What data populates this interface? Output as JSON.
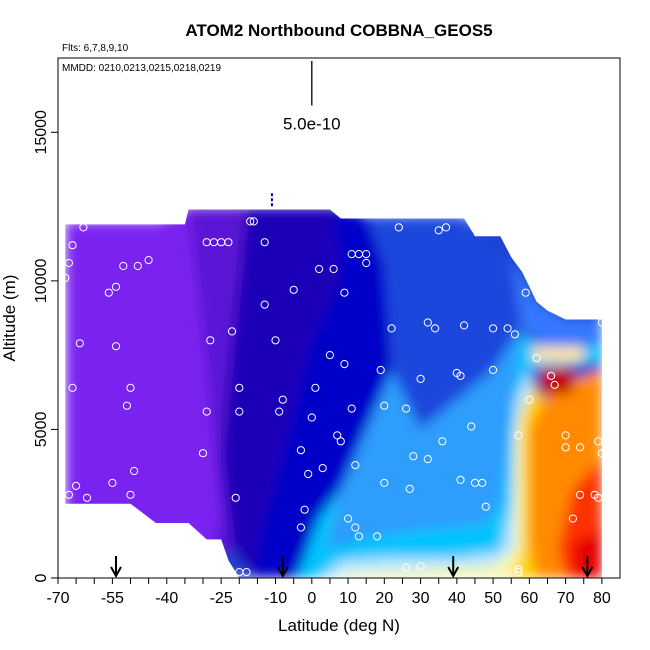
{
  "chart_data": {
    "type": "heatmap",
    "title": "ATOM2 Northbound COBBNA_GEOS5",
    "flights_text": "Flts: 6,7,8,9,10",
    "dates_text": "MMDD: 0210,0213,0215,0218,0219",
    "xlabel": "Latitude (deg N)",
    "ylabel": "Altitude (m)",
    "xlim": [
      -70,
      85
    ],
    "ylim": [
      0,
      17500
    ],
    "xticks": [
      -70,
      -55,
      -40,
      -25,
      -10,
      0,
      10,
      20,
      30,
      40,
      50,
      60,
      70,
      80
    ],
    "xtick_labels": [
      "-70",
      "-55",
      "-40",
      "-25",
      "-10",
      "0",
      "10",
      "20",
      "30",
      "40",
      "50",
      "60",
      "70",
      "80"
    ],
    "x_minor_ticks": [
      -65,
      -60,
      -50,
      -45,
      -35,
      -30,
      -20,
      -15,
      -5,
      5,
      15,
      25,
      35,
      45,
      55,
      65,
      75
    ],
    "yticks": [
      0,
      5000,
      10000,
      15000
    ],
    "ytick_labels": [
      "0",
      "5000",
      "10000",
      "15000"
    ],
    "scale_bar": {
      "label": "5.0e-10",
      "x": 0,
      "y_bottom": 15900,
      "y_top": 17400
    },
    "arrows_at_latitude": [
      -54,
      -8,
      39,
      76
    ],
    "domain_top": [
      [
        -68,
        0
      ],
      [
        -68,
        11900
      ],
      [
        -60,
        11900
      ],
      [
        -40,
        11900
      ],
      [
        -35,
        11900
      ],
      [
        -34,
        12400
      ],
      [
        -10,
        12400
      ],
      [
        5,
        12400
      ],
      [
        8,
        12100
      ],
      [
        42,
        12100
      ],
      [
        45,
        11500
      ],
      [
        52,
        11500
      ],
      [
        55,
        10800
      ],
      [
        58,
        10300
      ],
      [
        60,
        9800
      ],
      [
        62,
        9300
      ],
      [
        65,
        9000
      ],
      [
        70,
        8700
      ],
      [
        80,
        8700
      ],
      [
        80,
        0
      ]
    ],
    "domain_bottom": [
      [
        -68,
        2500
      ],
      [
        -50,
        2500
      ],
      [
        -43,
        1850
      ],
      [
        -34,
        1850
      ],
      [
        -29,
        1300
      ],
      [
        -25,
        1300
      ],
      [
        -23,
        600
      ],
      [
        -20,
        0
      ],
      [
        80,
        0
      ]
    ],
    "color_regions": [
      {
        "color": "#2040cc",
        "poly": [
          [
            -68,
            0
          ],
          [
            -68,
            12000
          ],
          [
            80,
            12000
          ],
          [
            80,
            0
          ]
        ]
      },
      {
        "color": "#7a22f0",
        "poly": [
          [
            -68,
            0
          ],
          [
            -68,
            12000
          ],
          [
            -42,
            12000
          ],
          [
            -34,
            12500
          ],
          [
            -30,
            12500
          ],
          [
            -28,
            6000
          ],
          [
            -25,
            2000
          ],
          [
            -30,
            0
          ]
        ]
      },
      {
        "color": "#5a14d4",
        "poly": [
          [
            -34,
            12500
          ],
          [
            -18,
            12500
          ],
          [
            -22,
            8000
          ],
          [
            -25,
            4000
          ],
          [
            -22,
            1000
          ],
          [
            -30,
            0
          ],
          [
            -25,
            2000
          ],
          [
            -28,
            6000
          ]
        ]
      },
      {
        "color": "#1f00b8",
        "poly": [
          [
            -18,
            12500
          ],
          [
            6,
            12500
          ],
          [
            8,
            10000
          ],
          [
            0,
            8000
          ],
          [
            -8,
            4000
          ],
          [
            -14,
            1500
          ],
          [
            -16,
            0
          ],
          [
            -22,
            1000
          ],
          [
            -25,
            4000
          ],
          [
            -22,
            8000
          ]
        ]
      },
      {
        "color": "#0000c8",
        "poly": [
          [
            6,
            12500
          ],
          [
            15,
            12200
          ],
          [
            20,
            10500
          ],
          [
            22,
            7000
          ],
          [
            15,
            5000
          ],
          [
            8,
            3000
          ],
          [
            2,
            2000
          ],
          [
            -4,
            0
          ],
          [
            -16,
            0
          ],
          [
            -14,
            1500
          ],
          [
            -8,
            4000
          ],
          [
            0,
            8000
          ],
          [
            8,
            10000
          ]
        ]
      },
      {
        "color": "#1e46dc",
        "poly": [
          [
            15,
            12200
          ],
          [
            42,
            12200
          ],
          [
            55,
            10800
          ],
          [
            58,
            8500
          ],
          [
            50,
            7000
          ],
          [
            40,
            6000
          ],
          [
            30,
            5000
          ],
          [
            22,
            7000
          ],
          [
            20,
            10500
          ]
        ]
      },
      {
        "color": "#3478ff",
        "poly": [
          [
            55,
            10800
          ],
          [
            62,
            9300
          ],
          [
            70,
            8700
          ],
          [
            80,
            8700
          ],
          [
            80,
            8000
          ],
          [
            65,
            7600
          ],
          [
            58,
            8500
          ]
        ]
      },
      {
        "color": "#2d9dfc",
        "poly": [
          [
            8,
            3000
          ],
          [
            15,
            5000
          ],
          [
            22,
            7000
          ],
          [
            30,
            5000
          ],
          [
            40,
            6000
          ],
          [
            50,
            7000
          ],
          [
            58,
            8500
          ],
          [
            57,
            6000
          ],
          [
            55,
            4500
          ],
          [
            53,
            2000
          ],
          [
            40,
            1500
          ],
          [
            25,
            1500
          ],
          [
            10,
            1300
          ],
          [
            4,
            1000
          ]
        ]
      },
      {
        "color": "#00c4ff",
        "poly": [
          [
            -4,
            0
          ],
          [
            2,
            2000
          ],
          [
            8,
            3000
          ],
          [
            4,
            1000
          ],
          [
            12,
            1300
          ],
          [
            30,
            1600
          ],
          [
            48,
            1800
          ],
          [
            52,
            2500
          ],
          [
            55,
            5500
          ],
          [
            58,
            8200
          ],
          [
            65,
            7600
          ],
          [
            80,
            7900
          ],
          [
            80,
            7300
          ],
          [
            60,
            7000
          ],
          [
            56,
            6000
          ],
          [
            55,
            2500
          ],
          [
            52,
            900
          ],
          [
            40,
            700
          ],
          [
            20,
            700
          ],
          [
            8,
            600
          ],
          [
            2,
            0
          ]
        ]
      },
      {
        "color": "#b8e8ff",
        "poly": [
          [
            2,
            0
          ],
          [
            8,
            600
          ],
          [
            20,
            700
          ],
          [
            40,
            700
          ],
          [
            52,
            900
          ],
          [
            55,
            2500
          ],
          [
            56,
            6000
          ],
          [
            60,
            7000
          ],
          [
            61,
            6500
          ],
          [
            58,
            5600
          ],
          [
            56,
            5000
          ],
          [
            56,
            1000
          ],
          [
            50,
            400
          ],
          [
            30,
            300
          ],
          [
            10,
            200
          ],
          [
            6,
            0
          ]
        ]
      },
      {
        "color": "#f7f7b0",
        "poly": [
          [
            6,
            0
          ],
          [
            10,
            200
          ],
          [
            30,
            300
          ],
          [
            50,
            400
          ],
          [
            56,
            1000
          ],
          [
            56,
            5000
          ],
          [
            58,
            5600
          ],
          [
            58,
            1000
          ],
          [
            55,
            0
          ]
        ]
      },
      {
        "color": "#ffd400",
        "poly": [
          [
            55,
            0
          ],
          [
            58,
            1000
          ],
          [
            58,
            5600
          ],
          [
            61,
            6500
          ],
          [
            64,
            6000
          ],
          [
            60,
            5000
          ],
          [
            60,
            1200
          ],
          [
            62,
            0
          ]
        ]
      },
      {
        "color": "#ff8a00",
        "poly": [
          [
            62,
            0
          ],
          [
            60,
            1200
          ],
          [
            60,
            5000
          ],
          [
            64,
            6000
          ],
          [
            68,
            6500
          ],
          [
            80,
            7000
          ],
          [
            80,
            4000
          ],
          [
            72,
            3000
          ],
          [
            68,
            1000
          ],
          [
            70,
            0
          ]
        ]
      },
      {
        "color": "#ff3300",
        "poly": [
          [
            70,
            0
          ],
          [
            68,
            1000
          ],
          [
            72,
            3000
          ],
          [
            80,
            4000
          ],
          [
            80,
            0
          ]
        ]
      },
      {
        "color": "#e60000",
        "poly": [
          [
            72,
            0
          ],
          [
            72,
            1200
          ],
          [
            78,
            1500
          ],
          [
            80,
            2200
          ],
          [
            80,
            0
          ]
        ]
      },
      {
        "color": "#c00000",
        "poly": [
          [
            63,
            6200
          ],
          [
            63,
            7100
          ],
          [
            72,
            7100
          ],
          [
            72,
            6200
          ]
        ]
      },
      {
        "color": "#ffe6a0",
        "poly": [
          [
            61,
            7300
          ],
          [
            61,
            7800
          ],
          [
            75,
            7800
          ],
          [
            75,
            7300
          ]
        ]
      }
    ],
    "sample_points": [
      [
        -68,
        10100
      ],
      [
        -67,
        10600
      ],
      [
        -66,
        11200
      ],
      [
        -63,
        11800
      ],
      [
        -66,
        6400
      ],
      [
        -64,
        7900
      ],
      [
        -67,
        2800
      ],
      [
        -65,
        3100
      ],
      [
        -62,
        2700
      ],
      [
        -56,
        9600
      ],
      [
        -54,
        9800
      ],
      [
        -54,
        7800
      ],
      [
        -52,
        10500
      ],
      [
        -51,
        5800
      ],
      [
        -50,
        6400
      ],
      [
        -50,
        2800
      ],
      [
        -49,
        3600
      ],
      [
        -48,
        10500
      ],
      [
        -45,
        10700
      ],
      [
        -55,
        3200
      ],
      [
        -29,
        11300
      ],
      [
        -27,
        11300
      ],
      [
        -25,
        11300
      ],
      [
        -23,
        11300
      ],
      [
        -28,
        8000
      ],
      [
        -29,
        5600
      ],
      [
        -30,
        4200
      ],
      [
        -22,
        8300
      ],
      [
        -20,
        6400
      ],
      [
        -20,
        5600
      ],
      [
        -21,
        2700
      ],
      [
        -20,
        200
      ],
      [
        -17,
        12000
      ],
      [
        -16,
        12000
      ],
      [
        -13,
        11300
      ],
      [
        -13,
        9200
      ],
      [
        -10,
        8000
      ],
      [
        -8,
        6000
      ],
      [
        -9,
        5600
      ],
      [
        -5,
        9700
      ],
      [
        -3,
        4300
      ],
      [
        -3,
        1700
      ],
      [
        -2,
        2300
      ],
      [
        -1,
        3500
      ],
      [
        0,
        5400
      ],
      [
        1,
        6400
      ],
      [
        2,
        10400
      ],
      [
        3,
        3700
      ],
      [
        5,
        7500
      ],
      [
        6,
        10400
      ],
      [
        7,
        4800
      ],
      [
        8,
        4600
      ],
      [
        9,
        9600
      ],
      [
        9,
        7200
      ],
      [
        11,
        5700
      ],
      [
        11,
        10900
      ],
      [
        13,
        10900
      ],
      [
        15,
        10900
      ],
      [
        15,
        10600
      ],
      [
        12,
        3800
      ],
      [
        10,
        2000
      ],
      [
        12,
        1700
      ],
      [
        13,
        1400
      ],
      [
        18,
        1400
      ],
      [
        20,
        3200
      ],
      [
        20,
        5800
      ],
      [
        19,
        7000
      ],
      [
        22,
        8400
      ],
      [
        24,
        11800
      ],
      [
        26,
        5700
      ],
      [
        27,
        3000
      ],
      [
        28,
        4100
      ],
      [
        30,
        6700
      ],
      [
        32,
        8600
      ],
      [
        32,
        4000
      ],
      [
        34,
        8400
      ],
      [
        35,
        11700
      ],
      [
        36,
        4600
      ],
      [
        37,
        11800
      ],
      [
        40,
        6900
      ],
      [
        41,
        6800
      ],
      [
        41,
        3300
      ],
      [
        42,
        8500
      ],
      [
        44,
        5100
      ],
      [
        45,
        3200
      ],
      [
        47,
        3200
      ],
      [
        48,
        2400
      ],
      [
        50,
        7000
      ],
      [
        50,
        8400
      ],
      [
        54,
        8400
      ],
      [
        56,
        8200
      ],
      [
        57,
        4800
      ],
      [
        59,
        9600
      ],
      [
        60,
        6000
      ],
      [
        62,
        7400
      ],
      [
        66,
        6800
      ],
      [
        67,
        6500
      ],
      [
        70,
        4800
      ],
      [
        70,
        4400
      ],
      [
        74,
        4400
      ],
      [
        74,
        2800
      ],
      [
        72,
        2000
      ],
      [
        78,
        2800
      ],
      [
        80,
        4200
      ],
      [
        79,
        2700
      ],
      [
        79,
        4600
      ],
      [
        80,
        8600
      ],
      [
        77,
        9500
      ],
      [
        57,
        300
      ],
      [
        30,
        400
      ],
      [
        26,
        350
      ],
      [
        -18,
        200
      ],
      [
        57,
        200
      ]
    ]
  }
}
